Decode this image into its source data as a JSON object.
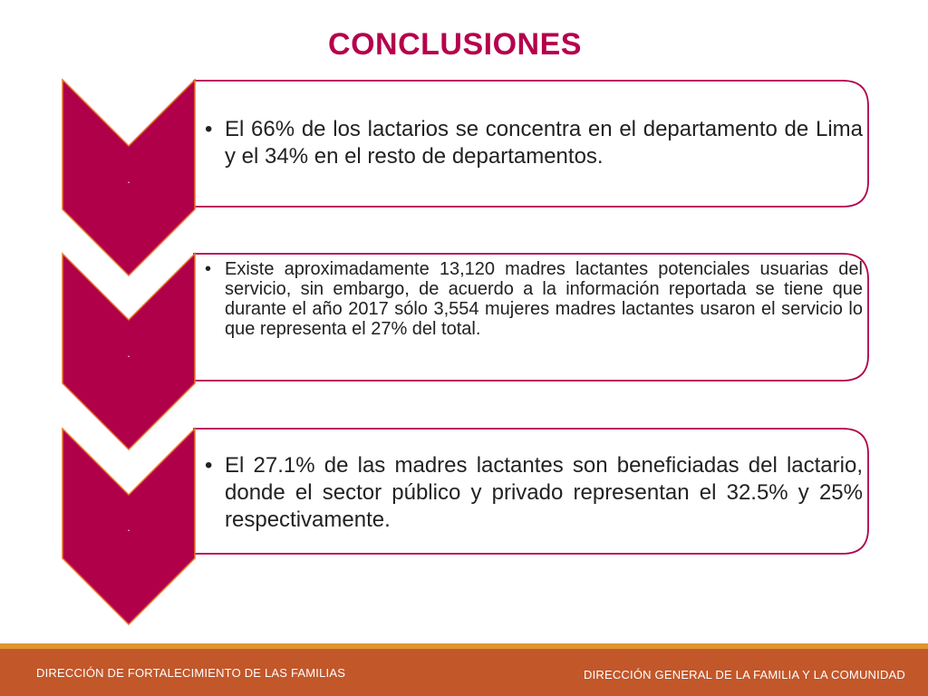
{
  "title": "CONCLUSIONES",
  "steps": [
    {
      "marker": ".",
      "bullet": "•",
      "text": "El 66% de los lactarios se concentra en el departamento de Lima y el 34% en el resto de departamentos."
    },
    {
      "marker": ".",
      "bullet": "•",
      "text": "Existe aproximadamente 13,120 madres lactantes potenciales usuarias del servicio, sin embargo, de acuerdo a la información reportada se tiene que durante el año 2017 sólo 3,554 mujeres madres lactantes usaron el servicio lo que representa el 27% del total."
    },
    {
      "marker": ".",
      "bullet": "•",
      "text": "El 27.1% de las madres lactantes son beneficiadas del lactario, donde el sector público y privado representan el 32.5% y 25% respectivamente."
    }
  ],
  "footer": {
    "left": "DIRECCIÓN DE FORTALECIMIENTO DE LAS FAMILIAS",
    "right": "DIRECCIÓN GENERAL DE LA FAMILIA Y LA COMUNIDAD"
  },
  "colors": {
    "title": "#b5004c",
    "chevron_fill": "#b0004a",
    "chevron_stroke": "#e8762a",
    "box_border": "#b0004a",
    "footer_bar": "#c2572a",
    "footer_accent": "#e0942e"
  }
}
